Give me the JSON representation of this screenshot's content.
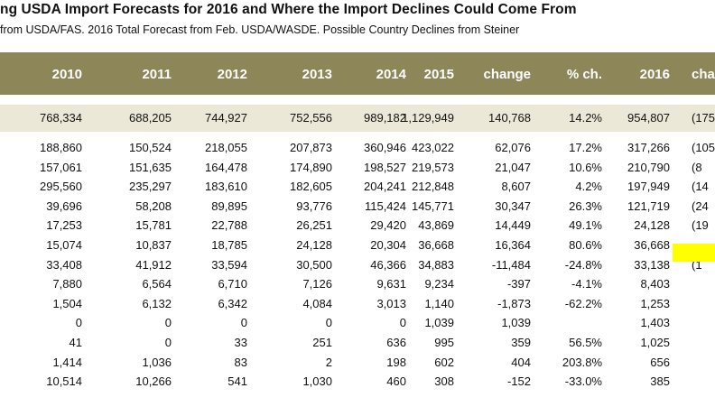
{
  "title": "ng USDA Import Forecasts for 2016 and Where the Import Declines Could Come From",
  "subtitle": "from USDA/FAS.  2016 Total Forecast from Feb. USDA/WASDE.  Possible Country Declines from Steiner",
  "colors": {
    "header_bg": "#8c8659",
    "total_bg": "#ece8d7",
    "highlight": "#ffff00"
  },
  "headers": [
    "2010",
    "2011",
    "2012",
    "2013",
    "2014",
    "2015",
    "change",
    "% ch.",
    "2016",
    "cha"
  ],
  "total": [
    "768,334",
    "688,205",
    "744,927",
    "752,556",
    "989,182",
    "1,129,949",
    "140,768",
    "14.2%",
    "954,807",
    "(175"
  ],
  "rows": [
    [
      "188,860",
      "150,524",
      "218,055",
      "207,873",
      "360,946",
      "423,022",
      "62,076",
      "17.2%",
      "317,266",
      "(105"
    ],
    [
      "157,061",
      "151,635",
      "164,478",
      "174,890",
      "198,527",
      "219,573",
      "21,047",
      "10.6%",
      "210,790",
      "(8"
    ],
    [
      "295,560",
      "235,297",
      "183,610",
      "182,605",
      "204,241",
      "212,848",
      "8,607",
      "4.2%",
      "197,949",
      "(14"
    ],
    [
      "39,696",
      "58,208",
      "89,895",
      "93,776",
      "115,424",
      "145,771",
      "30,347",
      "26.3%",
      "121,719",
      "(24"
    ],
    [
      "17,253",
      "15,781",
      "22,788",
      "26,251",
      "29,420",
      "43,869",
      "14,449",
      "49.1%",
      "24,128",
      "(19"
    ],
    [
      "15,074",
      "10,837",
      "18,785",
      "24,128",
      "20,304",
      "36,668",
      "16,364",
      "80.6%",
      "36,668",
      ""
    ],
    [
      "33,408",
      "41,912",
      "33,594",
      "30,500",
      "46,366",
      "34,883",
      "-11,484",
      "-24.8%",
      "33,138",
      "(1"
    ],
    [
      "7,880",
      "6,564",
      "6,710",
      "7,126",
      "9,631",
      "9,234",
      "-397",
      "-4.1%",
      "8,403",
      ""
    ],
    [
      "1,504",
      "6,132",
      "6,342",
      "4,084",
      "3,013",
      "1,140",
      "-1,873",
      "-62.2%",
      "1,253",
      ""
    ],
    [
      "0",
      "0",
      "0",
      "0",
      "0",
      "1,039",
      "1,039",
      "",
      "1,403",
      ""
    ],
    [
      "41",
      "0",
      "33",
      "251",
      "636",
      "995",
      "359",
      "56.5%",
      "1,025",
      ""
    ],
    [
      "1,414",
      "1,036",
      "83",
      "2",
      "198",
      "602",
      "404",
      "203.8%",
      "656",
      ""
    ],
    [
      "10,514",
      "10,266",
      "541",
      "1,030",
      "460",
      "308",
      "-152",
      "-33.0%",
      "385",
      ""
    ]
  ]
}
